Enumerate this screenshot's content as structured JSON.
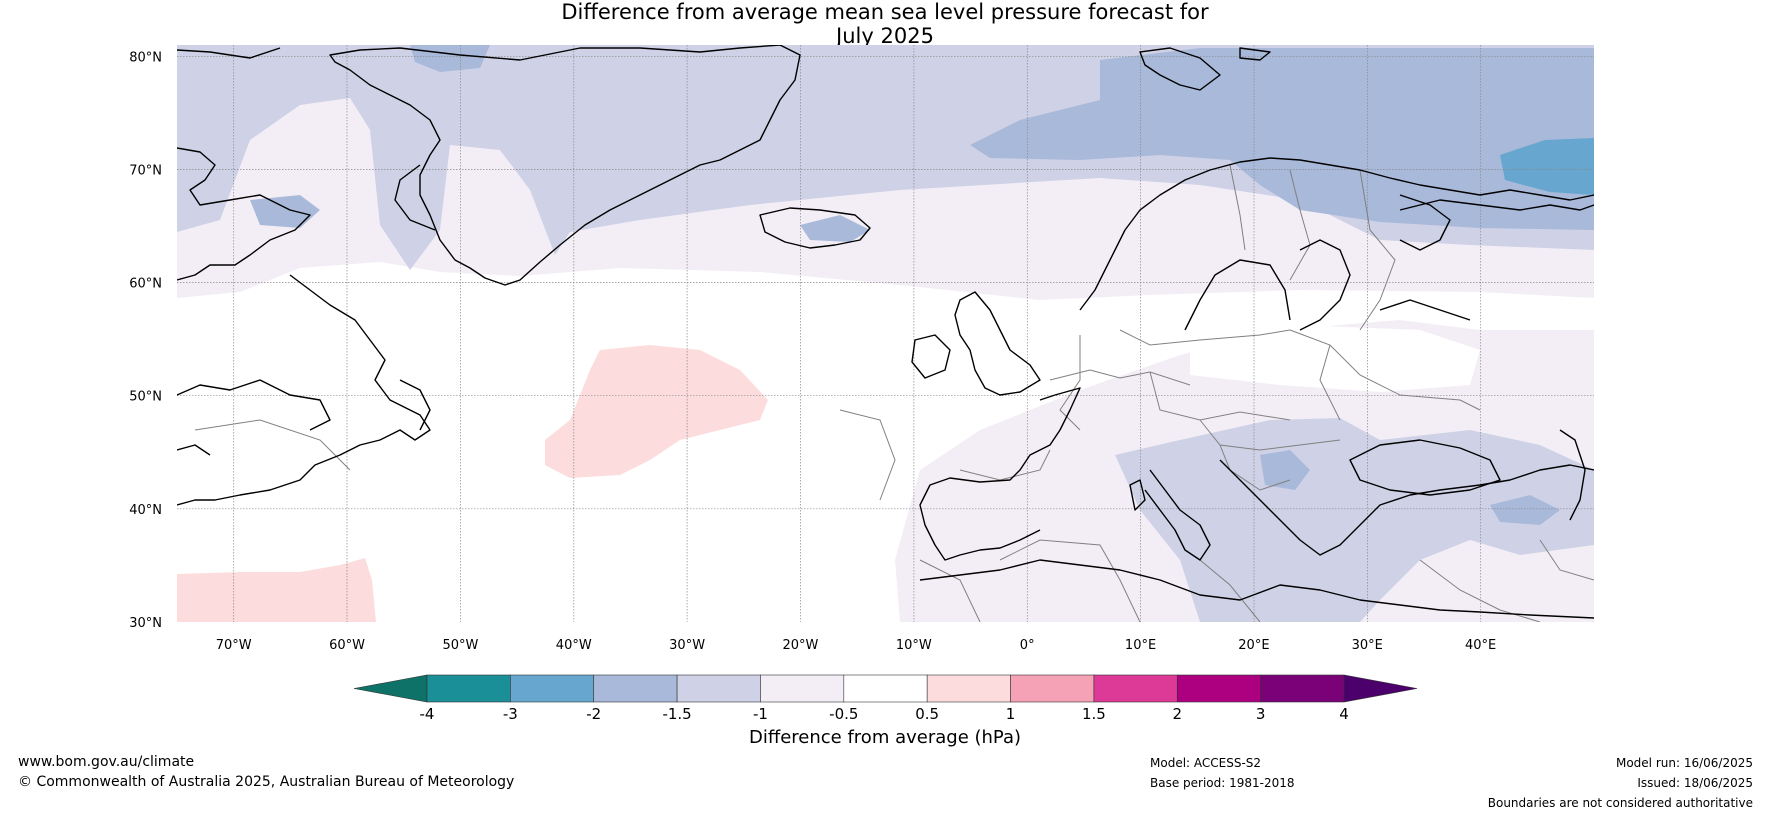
{
  "title": {
    "line1": "Difference from average mean sea level pressure forecast for",
    "line2": "July 2025"
  },
  "axes": {
    "lat_labels": [
      "80°N",
      "70°N",
      "60°N",
      "50°N",
      "40°N",
      "30°N"
    ],
    "lat_values": [
      80,
      70,
      60,
      50,
      40,
      30
    ],
    "lon_labels": [
      "70°W",
      "60°W",
      "50°W",
      "40°W",
      "30°W",
      "20°W",
      "10°W",
      "0°",
      "10°E",
      "20°E",
      "30°E",
      "40°E"
    ],
    "lon_values": [
      -70,
      -60,
      -50,
      -40,
      -30,
      -20,
      -10,
      0,
      10,
      20,
      30,
      40
    ],
    "lon_range": [
      -75,
      50
    ],
    "lat_range": [
      30,
      81
    ]
  },
  "colorbar": {
    "title": "Difference from average (hPa)",
    "tick_labels": [
      "-4",
      "-3",
      "-2",
      "-1.5",
      "-1",
      "-0.5",
      "0.5",
      "1",
      "1.5",
      "2",
      "3",
      "4"
    ],
    "colors": [
      "#1a8f97",
      "#66a6cf",
      "#a8b9da",
      "#cfd1e6",
      "#f3eef6",
      "#ffffff",
      "#fcdcdd",
      "#f5a2b7",
      "#dd3997",
      "#ac0080",
      "#7a0177"
    ],
    "under_color": "#0f7268",
    "over_color": "#4b006b"
  },
  "footer": {
    "website": "www.bom.gov.au/climate",
    "copyright": "© Commonwealth of Australia 2025, Australian Bureau of Meteorology",
    "model": "Model: ACCESS-S2",
    "base_period": "Base period: 1981-2018",
    "model_run": "Model run: 16/06/2025",
    "issued": "Issued: 18/06/2025",
    "disclaimer": "Boundaries are not considered authoritative"
  },
  "colors": {
    "coastline": "#000000",
    "borders": "#808080",
    "gridlines": "#888888"
  }
}
